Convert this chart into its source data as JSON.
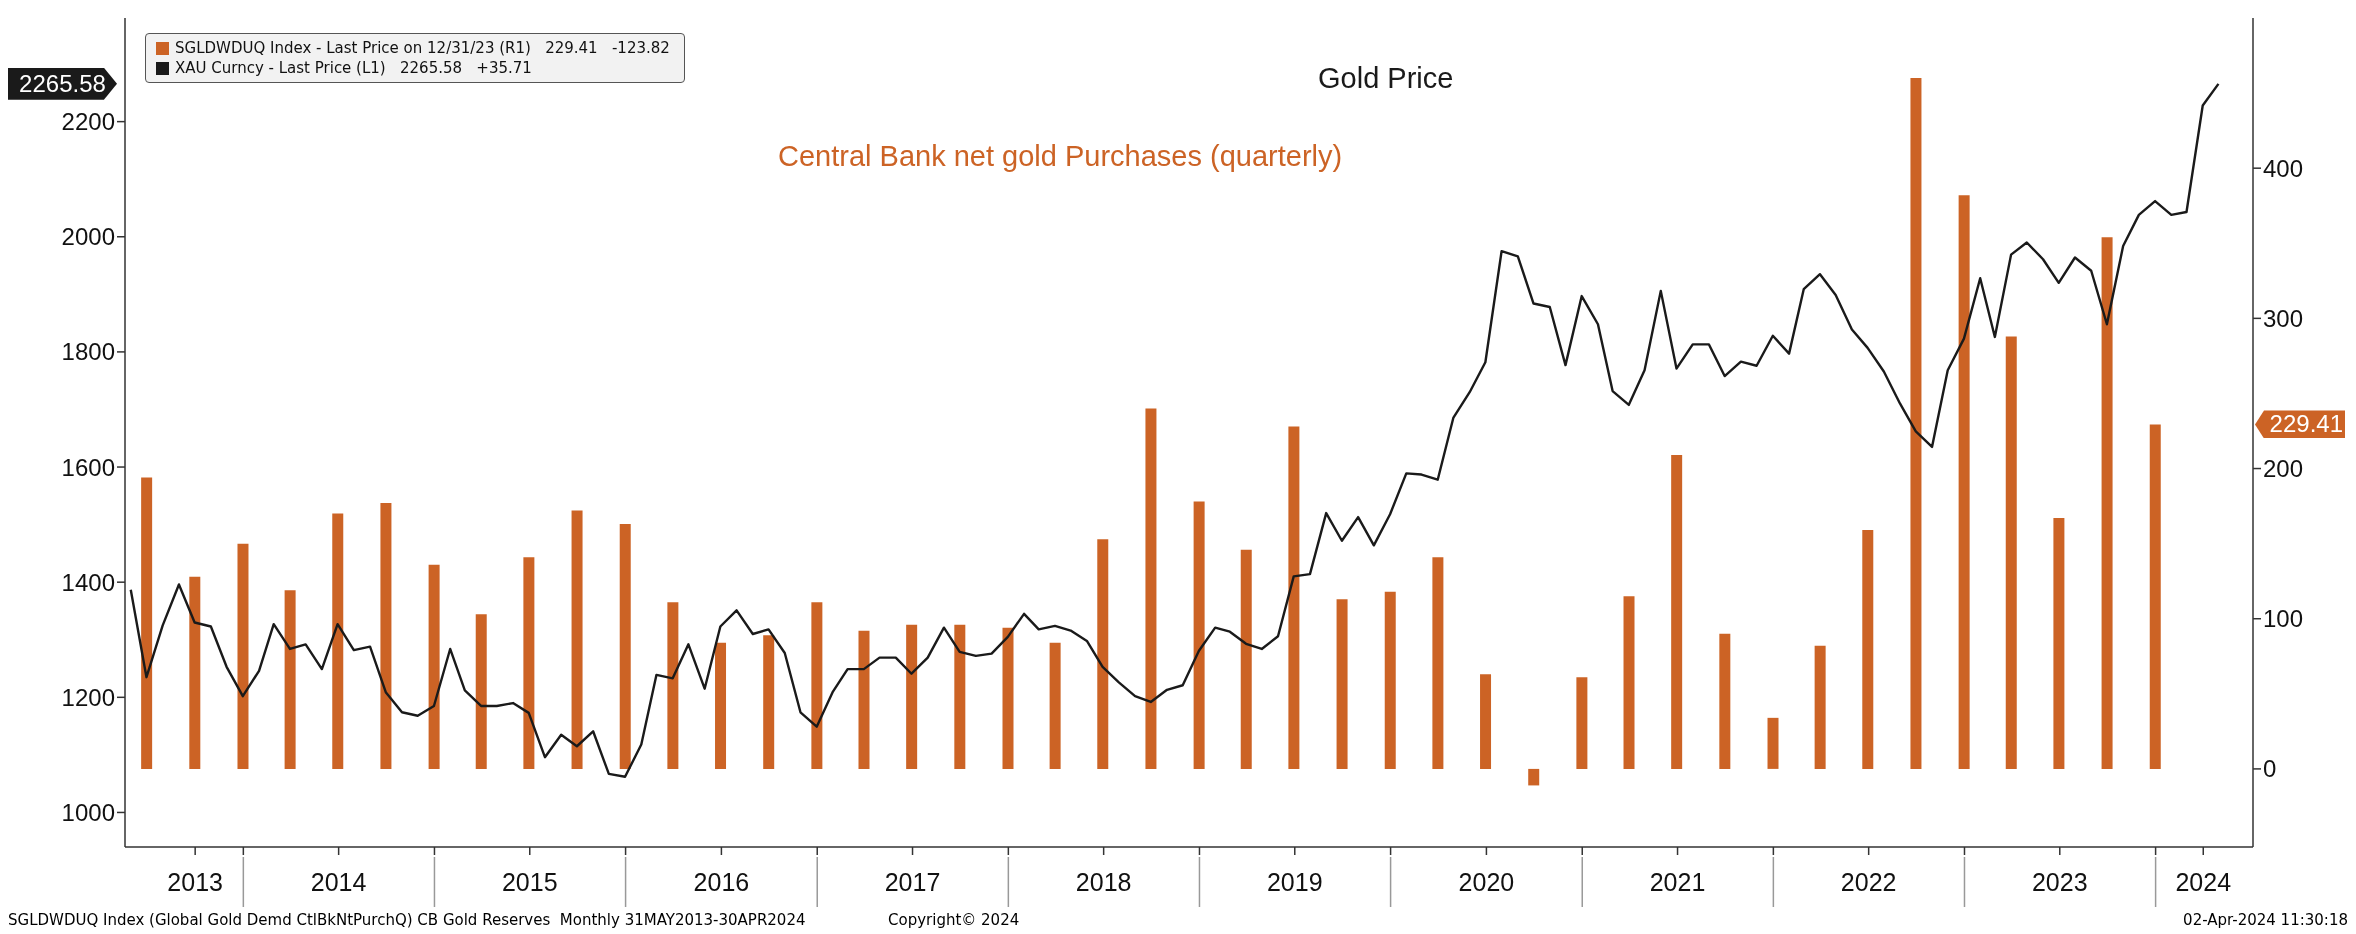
{
  "chart_data": {
    "type": "bar",
    "legend": "top left",
    "xlim": [
      "2013-05-20",
      "2024-07-05"
    ],
    "xticks": [
      {
        "value": "2013-10-01",
        "label": "2013"
      },
      {
        "value": "2014-01-01",
        "label": null
      },
      {
        "value": "2014-07-02",
        "label": "2014"
      },
      {
        "value": "2015-01-01",
        "label": null
      },
      {
        "value": "2015-07-02",
        "label": "2015"
      },
      {
        "value": "2016-01-01",
        "label": null
      },
      {
        "value": "2016-07-02",
        "label": "2016"
      },
      {
        "value": "2017-01-01",
        "label": null
      },
      {
        "value": "2017-07-02",
        "label": "2017"
      },
      {
        "value": "2018-01-01",
        "label": null
      },
      {
        "value": "2018-07-02",
        "label": "2018"
      },
      {
        "value": "2019-01-01",
        "label": null
      },
      {
        "value": "2019-07-02",
        "label": "2019"
      },
      {
        "value": "2020-01-01",
        "label": null
      },
      {
        "value": "2020-07-02",
        "label": "2020"
      },
      {
        "value": "2021-01-01",
        "label": null
      },
      {
        "value": "2021-07-02",
        "label": "2021"
      },
      {
        "value": "2022-01-01",
        "label": null
      },
      {
        "value": "2022-07-02",
        "label": "2022"
      },
      {
        "value": "2023-01-01",
        "label": null
      },
      {
        "value": "2023-07-02",
        "label": "2023"
      },
      {
        "value": "2024-01-01",
        "label": null
      },
      {
        "value": "2024-04-01",
        "label": "2024"
      }
    ],
    "ylim": [
      940,
      2380
    ],
    "yticks": [
      1000,
      1200,
      1400,
      1600,
      1800,
      2000,
      2200
    ],
    "y2lim": [
      -52,
      500
    ],
    "y2ticks": [
      0,
      100,
      200,
      300,
      400
    ],
    "annotations": [
      "Central Bank net gold Purchases (quarterly)",
      "Gold Price",
      "2265.58",
      "229.41",
      "SGLDWDUQ Index (Global Gold Demd CtlBkNtPurchQ) CB Gold Reserves  Monthly 31MAY2013-30APR2024",
      "Copyright© 2024",
      "02-Apr-2024 11:30:18"
    ],
    "series": [
      {
        "name": "SGLDWDUQ Index - Last Price on 12/31/23 (R1)   229.41   -123.82",
        "type": "bar",
        "axis": "y2",
        "color": "#cc6325",
        "x": [
          "2013-06-30",
          "2013-09-30",
          "2013-12-31",
          "2014-03-31",
          "2014-06-30",
          "2014-09-30",
          "2014-12-31",
          "2015-03-31",
          "2015-06-30",
          "2015-09-30",
          "2015-12-31",
          "2016-03-31",
          "2016-06-30",
          "2016-09-30",
          "2016-12-31",
          "2017-03-31",
          "2017-06-30",
          "2017-09-30",
          "2017-12-31",
          "2018-03-31",
          "2018-06-30",
          "2018-09-30",
          "2018-12-31",
          "2019-03-31",
          "2019-06-30",
          "2019-09-30",
          "2019-12-31",
          "2020-03-31",
          "2020-06-30",
          "2020-09-30",
          "2020-12-31",
          "2021-03-31",
          "2021-06-30",
          "2021-09-30",
          "2021-12-31",
          "2022-03-31",
          "2022-06-30",
          "2022-09-30",
          "2022-12-31",
          "2023-03-31",
          "2023-06-30",
          "2023-09-30",
          "2023-12-31"
        ],
        "values": [
          194,
          128,
          150,
          119,
          170,
          177,
          136,
          103,
          141,
          172,
          163,
          111,
          84,
          89,
          111,
          92,
          96,
          96,
          94,
          84,
          153,
          240,
          178,
          146,
          228,
          113,
          118,
          141,
          63,
          -11,
          61,
          115,
          209,
          90,
          34,
          82,
          159,
          460,
          382,
          288,
          167,
          354,
          229.41
        ]
      },
      {
        "name": "XAU Curncy - Last Price (L1)   2265.58   +35.71",
        "type": "line",
        "color": "#1a1a1a",
        "x": [
          "2013-05-31",
          "2013-06-30",
          "2013-07-31",
          "2013-08-31",
          "2013-09-30",
          "2013-10-31",
          "2013-11-30",
          "2013-12-31",
          "2014-01-31",
          "2014-02-28",
          "2014-03-31",
          "2014-04-30",
          "2014-05-31",
          "2014-06-30",
          "2014-07-31",
          "2014-08-31",
          "2014-09-30",
          "2014-10-31",
          "2014-11-30",
          "2014-12-31",
          "2015-01-31",
          "2015-02-28",
          "2015-03-31",
          "2015-04-30",
          "2015-05-31",
          "2015-06-30",
          "2015-07-31",
          "2015-08-31",
          "2015-09-30",
          "2015-10-31",
          "2015-11-30",
          "2015-12-31",
          "2016-01-31",
          "2016-02-29",
          "2016-03-31",
          "2016-04-30",
          "2016-05-31",
          "2016-06-30",
          "2016-07-31",
          "2016-08-31",
          "2016-09-30",
          "2016-10-31",
          "2016-11-30",
          "2016-12-31",
          "2017-01-31",
          "2017-02-28",
          "2017-03-31",
          "2017-04-30",
          "2017-05-31",
          "2017-06-30",
          "2017-07-31",
          "2017-08-31",
          "2017-09-30",
          "2017-10-31",
          "2017-11-30",
          "2017-12-31",
          "2018-01-31",
          "2018-02-28",
          "2018-03-31",
          "2018-04-30",
          "2018-05-31",
          "2018-06-30",
          "2018-07-31",
          "2018-08-31",
          "2018-09-30",
          "2018-10-31",
          "2018-11-30",
          "2018-12-31",
          "2019-01-31",
          "2019-02-28",
          "2019-03-31",
          "2019-04-30",
          "2019-05-31",
          "2019-06-30",
          "2019-07-31",
          "2019-08-31",
          "2019-09-30",
          "2019-10-31",
          "2019-11-30",
          "2019-12-31",
          "2020-01-31",
          "2020-02-29",
          "2020-03-31",
          "2020-04-30",
          "2020-05-31",
          "2020-06-30",
          "2020-07-31",
          "2020-08-31",
          "2020-09-30",
          "2020-10-31",
          "2020-11-30",
          "2020-12-31",
          "2021-01-31",
          "2021-02-28",
          "2021-03-31",
          "2021-04-30",
          "2021-05-31",
          "2021-06-30",
          "2021-07-31",
          "2021-08-31",
          "2021-09-30",
          "2021-10-31",
          "2021-11-30",
          "2021-12-31",
          "2022-01-31",
          "2022-02-28",
          "2022-03-31",
          "2022-04-30",
          "2022-05-31",
          "2022-06-30",
          "2022-07-31",
          "2022-08-31",
          "2022-09-30",
          "2022-10-31",
          "2022-11-30",
          "2022-12-31",
          "2023-01-31",
          "2023-02-28",
          "2023-03-31",
          "2023-04-30",
          "2023-05-31",
          "2023-06-30",
          "2023-07-31",
          "2023-08-31",
          "2023-09-30",
          "2023-10-31",
          "2023-11-30",
          "2023-12-31",
          "2024-01-31",
          "2024-02-29",
          "2024-03-31",
          "2024-04-30"
        ],
        "values": [
          1387,
          1235,
          1325,
          1396,
          1330,
          1323,
          1253,
          1202,
          1246,
          1327,
          1284,
          1292,
          1249,
          1327,
          1282,
          1288,
          1209,
          1174,
          1168,
          1185,
          1284,
          1212,
          1185,
          1185,
          1190,
          1173,
          1096,
          1135,
          1115,
          1141,
          1067,
          1062,
          1118,
          1239,
          1233,
          1292,
          1215,
          1323,
          1351,
          1310,
          1318,
          1277,
          1174,
          1149,
          1210,
          1249,
          1249,
          1269,
          1269,
          1241,
          1269,
          1321,
          1279,
          1272,
          1276,
          1305,
          1345,
          1318,
          1324,
          1316,
          1298,
          1253,
          1226,
          1202,
          1192,
          1213,
          1221,
          1281,
          1321,
          1314,
          1293,
          1284,
          1306,
          1410,
          1414,
          1520,
          1472,
          1513,
          1464,
          1518,
          1589,
          1587,
          1578,
          1686,
          1730,
          1782,
          1975,
          1966,
          1884,
          1878,
          1777,
          1897,
          1848,
          1732,
          1708,
          1768,
          1906,
          1771,
          1813,
          1813,
          1758,
          1783,
          1776,
          1828,
          1797,
          1909,
          1935,
          1899,
          1839,
          1807,
          1766,
          1710,
          1662,
          1635,
          1768,
          1823,
          1928,
          1826,
          1969,
          1990,
          1961,
          1920,
          1964,
          1941,
          1848,
          1984,
          2038,
          2062,
          2038,
          2043,
          2228,
          2265.58
        ]
      }
    ]
  }
}
